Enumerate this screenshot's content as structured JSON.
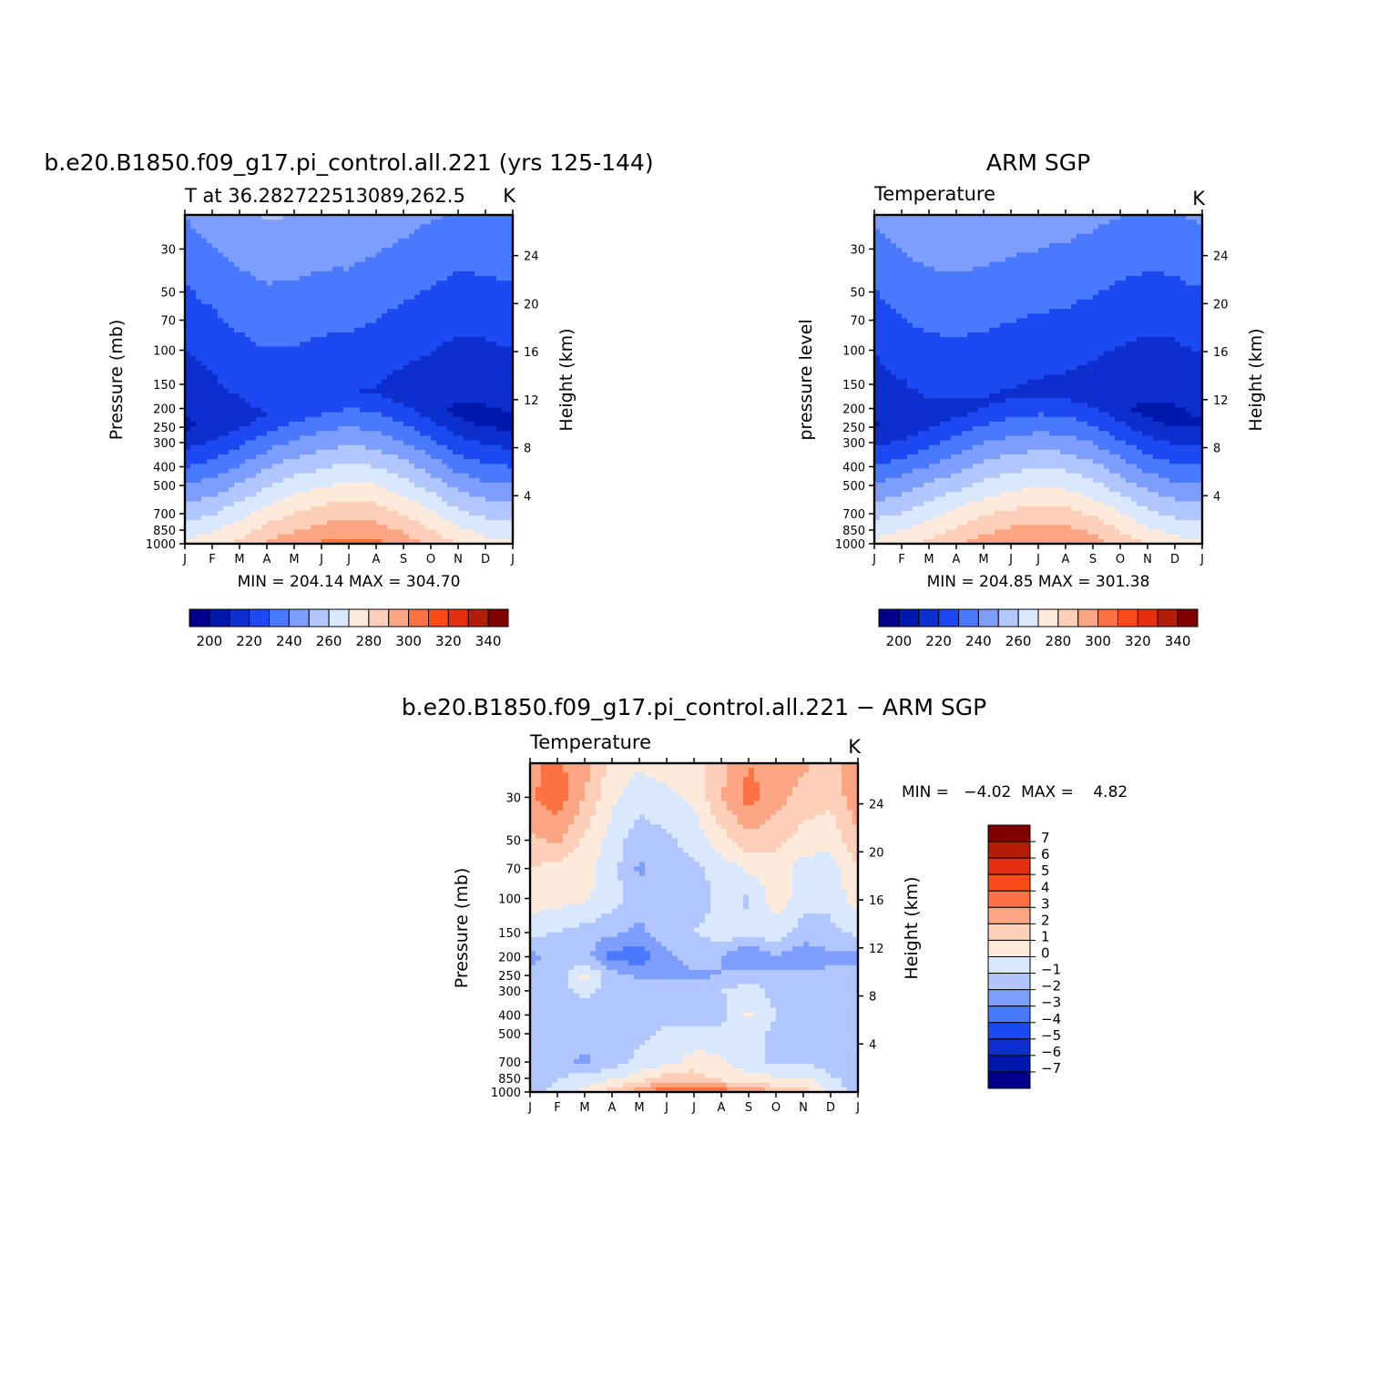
{
  "palette": {
    "temperature": [
      "#00008b",
      "#0018ac",
      "#0c2fce",
      "#1d49f3",
      "#4979ff",
      "#7e9efd",
      "#b0c6fd",
      "#d9e8fd",
      "#feeadb",
      "#fdcfb8",
      "#fba583",
      "#fd7143",
      "#fc4b18",
      "#e23010",
      "#b21e07",
      "#800000"
    ],
    "difference": [
      "#00008b",
      "#0018ac",
      "#0c2fce",
      "#1d49f3",
      "#4979ff",
      "#7e9efd",
      "#b0c6fd",
      "#d9e8fd",
      "#feeadb",
      "#fdcfb8",
      "#fba583",
      "#fd7143",
      "#fc4b18",
      "#e23010",
      "#b21e07",
      "#800000"
    ]
  },
  "chart_data": [
    {
      "type": "heatmap",
      "title": "b.e20.B1850.f09_g17.pi_control.all.221 (yrs 125-144)",
      "subtitle": "T at 36.282722513089,262.5",
      "units": "K",
      "x": [
        "J",
        "F",
        "M",
        "A",
        "M",
        "J",
        "J",
        "A",
        "S",
        "O",
        "N",
        "D",
        "J"
      ],
      "y_pressure_ticks": [
        30,
        50,
        70,
        100,
        150,
        200,
        250,
        300,
        400,
        500,
        700,
        850,
        1000
      ],
      "y_height_ticks": [
        24,
        20,
        16,
        12,
        8,
        4
      ],
      "ylabel": "Pressure (mb)",
      "ylabel_right": "Height (km)",
      "ylim": [
        1000,
        20
      ],
      "log_scale": true,
      "min": "204.14",
      "max": "304.70",
      "stats_text": "MIN = 204.14 MAX = 304.70",
      "colorbar_levels": [
        195,
        200,
        205,
        210,
        215,
        220,
        225,
        230,
        235,
        240,
        245,
        250,
        255,
        260,
        265,
        270,
        275,
        280,
        285,
        290,
        295,
        300,
        305,
        310,
        315,
        320,
        325,
        330,
        335,
        340,
        345
      ],
      "colorbar_labels": [
        "200",
        "220",
        "240",
        "260",
        "280",
        "300",
        "320",
        "340"
      ],
      "surface_temperature_by_month": [
        272,
        276,
        283,
        291,
        297,
        301,
        304,
        302,
        296,
        288,
        279,
        274,
        272
      ]
    },
    {
      "type": "heatmap",
      "title": "ARM SGP",
      "subtitle": "Temperature",
      "units": "K",
      "x": [
        "J",
        "F",
        "M",
        "A",
        "M",
        "J",
        "J",
        "A",
        "S",
        "O",
        "N",
        "D",
        "J"
      ],
      "y_pressure_ticks": [
        30,
        50,
        70,
        100,
        150,
        200,
        250,
        300,
        400,
        500,
        700,
        850,
        1000
      ],
      "y_height_ticks": [
        24,
        20,
        16,
        12,
        8,
        4
      ],
      "ylabel": "pressure level",
      "ylabel_right": "Height (km)",
      "ylim": [
        1000,
        20
      ],
      "log_scale": true,
      "min": "204.85",
      "max": "301.38",
      "stats_text": "MIN = 204.85 MAX = 301.38",
      "colorbar_labels": [
        "200",
        "220",
        "240",
        "260",
        "280",
        "300",
        "320",
        "340"
      ],
      "surface_temperature_by_month": [
        273,
        277,
        283,
        289,
        295,
        299,
        301,
        300,
        295,
        287,
        279,
        274,
        273
      ]
    },
    {
      "type": "heatmap",
      "title": "b.e20.B1850.f09_g17.pi_control.all.221 − ARM SGP",
      "subtitle": "Temperature",
      "units": "K",
      "x": [
        "J",
        "F",
        "M",
        "A",
        "M",
        "J",
        "J",
        "A",
        "S",
        "O",
        "N",
        "D",
        "J"
      ],
      "y_pressure_ticks": [
        30,
        50,
        70,
        100,
        150,
        200,
        250,
        300,
        400,
        500,
        700,
        850,
        1000
      ],
      "y_height_ticks": [
        24,
        20,
        16,
        12,
        8,
        4
      ],
      "ylabel": "Pressure (mb)",
      "ylabel_right": "Height (km)",
      "ylim": [
        1000,
        20
      ],
      "log_scale": true,
      "min": "−4.02",
      "max": "4.82",
      "stats_text": "MIN =   −4.02  MAX =    4.82",
      "colorbar_levels": [
        -7,
        -6,
        -5,
        -4,
        -3,
        -2,
        -1,
        0,
        1,
        2,
        3,
        4,
        5,
        6,
        7
      ],
      "colorbar_labels": [
        "7",
        "6",
        "5",
        "4",
        "3",
        "2",
        "1",
        "0",
        "−1",
        "−2",
        "−3",
        "−4",
        "−5",
        "−6",
        "−7"
      ],
      "difference_grid_pressure_levels": [
        20,
        30,
        50,
        70,
        100,
        150,
        200,
        250,
        300,
        400,
        500,
        700,
        850,
        1000
      ],
      "difference_grid": [
        [
          2.8,
          3.2,
          2.4,
          0.6,
          0.2,
          0.4,
          0.4,
          1.6,
          3.0,
          2.6,
          2.2,
          1.6,
          2.8
        ],
        [
          2.8,
          3.6,
          2.0,
          0.2,
          -0.6,
          -0.2,
          0.2,
          2.0,
          3.4,
          2.4,
          1.6,
          1.2,
          2.8
        ],
        [
          1.8,
          2.2,
          0.8,
          -0.4,
          -1.6,
          -1.2,
          -0.6,
          0.6,
          1.6,
          1.4,
          0.6,
          0.4,
          1.8
        ],
        [
          1.0,
          0.6,
          0.4,
          -0.6,
          -2.2,
          -1.4,
          -1.2,
          -0.6,
          0.2,
          0.4,
          -0.4,
          -0.6,
          1.0
        ],
        [
          0.6,
          0.4,
          0.2,
          -0.6,
          -1.6,
          -1.4,
          -1.8,
          -0.6,
          -1.2,
          0.6,
          -0.6,
          -0.8,
          0.6
        ],
        [
          -0.8,
          -1.0,
          -1.4,
          -1.8,
          -2.2,
          -1.4,
          -1.0,
          -0.4,
          -0.6,
          -0.4,
          -1.4,
          -1.2,
          -0.8
        ],
        [
          -2.4,
          -1.4,
          -1.6,
          -3.4,
          -3.6,
          -2.2,
          -1.6,
          -2.0,
          -3.2,
          -2.0,
          -2.8,
          -2.2,
          -2.4
        ],
        [
          -1.6,
          -1.8,
          0.4,
          -1.6,
          -2.2,
          -2.4,
          -2.2,
          -2.0,
          -1.6,
          -2.0,
          -1.6,
          -1.8,
          -1.6
        ],
        [
          -1.4,
          -1.6,
          -0.6,
          -1.6,
          -1.6,
          -1.4,
          -1.2,
          -1.0,
          -0.4,
          -1.4,
          -1.6,
          -1.4,
          -1.4
        ],
        [
          -1.4,
          -1.6,
          -1.8,
          -1.6,
          -1.6,
          -1.4,
          -1.4,
          -1.4,
          0.2,
          -1.0,
          -1.4,
          -1.4,
          -1.4
        ],
        [
          -1.8,
          -1.6,
          -1.6,
          -1.6,
          -1.2,
          -0.8,
          -0.6,
          -0.6,
          -0.8,
          -1.2,
          -1.2,
          -1.8,
          -1.8
        ],
        [
          -2.0,
          -1.6,
          -2.2,
          -1.4,
          -0.8,
          -0.4,
          0.4,
          0.2,
          -0.6,
          -1.2,
          -1.0,
          -1.6,
          -2.0
        ],
        [
          -1.6,
          -1.0,
          -0.6,
          -0.2,
          0.6,
          1.6,
          1.6,
          0.6,
          0.4,
          0.2,
          0.2,
          -0.8,
          -1.6
        ],
        [
          -1.4,
          -0.6,
          0.4,
          1.6,
          2.6,
          3.8,
          4.4,
          3.6,
          3.2,
          1.6,
          1.4,
          -0.4,
          -1.4
        ]
      ]
    }
  ]
}
